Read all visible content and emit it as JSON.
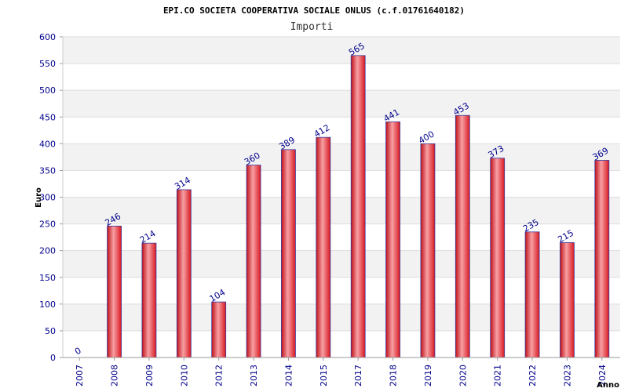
{
  "chart_data": {
    "type": "bar",
    "title": "EPI.CO SOCIETA COOPERATIVA SOCIALE ONLUS (c.f.01761640182)",
    "subtitle": "Importi",
    "xlabel": "Anno",
    "ylabel": "Euro",
    "categories": [
      "2007",
      "2008",
      "2009",
      "2010",
      "2012",
      "2013",
      "2014",
      "2015",
      "2017",
      "2018",
      "2019",
      "2020",
      "2021",
      "2022",
      "2023",
      "2024"
    ],
    "values": [
      0,
      246,
      214,
      314,
      104,
      360,
      389,
      412,
      565,
      441,
      400,
      453,
      373,
      235,
      215,
      369
    ],
    "ylim": [
      0,
      600
    ],
    "yticks": [
      0,
      50,
      100,
      150,
      200,
      250,
      300,
      350,
      400,
      450,
      500,
      550,
      600
    ],
    "grid": true,
    "colors": {
      "bar": "#e8202a",
      "bar_highlight": "#f7a0a4",
      "bar_edge": "#3a3aa0",
      "tick_text": "#00008b",
      "band": "#f2f2f2"
    }
  }
}
